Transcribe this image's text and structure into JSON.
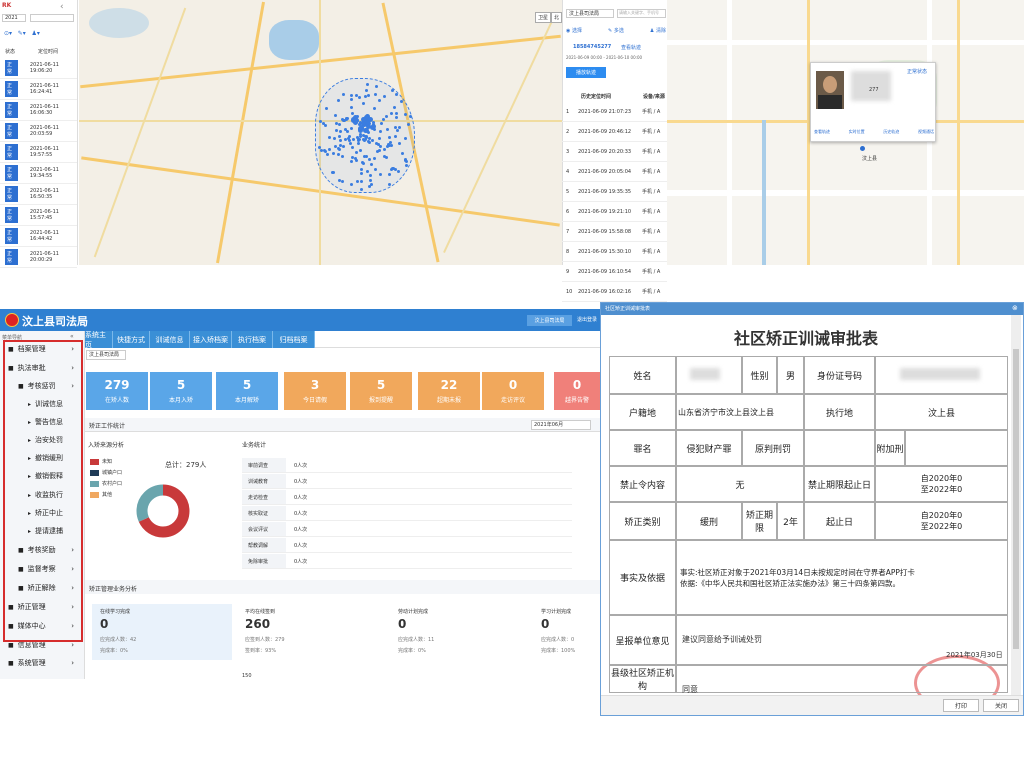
{
  "tl_panel": {
    "logo": "RK",
    "time_badge": "2021",
    "col_status": "状态",
    "col_time": "定位时间",
    "status_badge": "正常",
    "rows": [
      "2021-06-11 19:06:20",
      "2021-06-11 16:24:41",
      "2021-06-11 16:06:30",
      "2021-06-11 20:03:59",
      "2021-06-11 19:57:55",
      "2021-06-11 19:34:55",
      "2021-06-11 16:50:35",
      "2021-06-11 15:57:45",
      "2021-06-11 16:44:42",
      "2021-06-11 20:00:29"
    ]
  },
  "map1": {
    "badge1": "卫星",
    "badge2": "北"
  },
  "mid_panel": {
    "title": "汶上县司法局",
    "search_placeholder": "请输入关键字、手机号",
    "tools": [
      "选择",
      "多选",
      "清除"
    ],
    "phone": "18584745277",
    "link": "查看轨迹",
    "range": "2021-06-09 00:00 - 2021-06-10 00:00",
    "btn": "播放轨迹",
    "hdr_time": "历史定位时间",
    "hdr_dev": "设备/来源",
    "rows": [
      {
        "n": "1",
        "t": "2021-06-09 21:07:23",
        "d": "手机 / A"
      },
      {
        "n": "2",
        "t": "2021-06-09 20:46:12",
        "d": "手机 / A"
      },
      {
        "n": "3",
        "t": "2021-06-09 20:20:33",
        "d": "手机 / A"
      },
      {
        "n": "4",
        "t": "2021-06-09 20:05:04",
        "d": "手机 / A"
      },
      {
        "n": "5",
        "t": "2021-06-09 19:35:35",
        "d": "手机 / A"
      },
      {
        "n": "6",
        "t": "2021-06-09 19:21:10",
        "d": "手机 / A"
      },
      {
        "n": "7",
        "t": "2021-06-09 15:58:08",
        "d": "手机 / A"
      },
      {
        "n": "8",
        "t": "2021-06-09 15:30:10",
        "d": "手机 / A"
      },
      {
        "n": "9",
        "t": "2021-06-09 16:10:54",
        "d": "手机 / A"
      },
      {
        "n": "10",
        "t": "2021-06-09 16:02:16",
        "d": "手机 / A"
      }
    ]
  },
  "map3": {
    "popup_link": "正常状态",
    "actions": [
      "查看轨迹",
      "实时位置",
      "历史轨迹",
      "视频通话"
    ],
    "place": "汶上县",
    "id_suffix": "277"
  },
  "app": {
    "title": "汶上县司法局",
    "user_btn": "汶上县司法局",
    "exit_btn": "退出登录",
    "menu_label": "菜单导航",
    "sidebar": [
      {
        "label": "档案管理",
        "lvl": 0
      },
      {
        "label": "执法审批",
        "lvl": 0
      },
      {
        "label": "考核惩罚",
        "lvl": 1
      },
      {
        "label": "训诫信息",
        "lvl": 2
      },
      {
        "label": "警告信息",
        "lvl": 2
      },
      {
        "label": "治安处罚",
        "lvl": 2
      },
      {
        "label": "撤销缓刑",
        "lvl": 2
      },
      {
        "label": "撤销假释",
        "lvl": 2
      },
      {
        "label": "收监执行",
        "lvl": 2
      },
      {
        "label": "矫正中止",
        "lvl": 2
      },
      {
        "label": "提请逮捕",
        "lvl": 2
      },
      {
        "label": "考核奖励",
        "lvl": 1
      },
      {
        "label": "监督考察",
        "lvl": 1
      },
      {
        "label": "矫正解除",
        "lvl": 1
      },
      {
        "label": "矫正管理",
        "lvl": 0
      },
      {
        "label": "媒体中心",
        "lvl": 0
      },
      {
        "label": "信息管理",
        "lvl": 0
      },
      {
        "label": "系统管理",
        "lvl": 0
      }
    ],
    "tabs": [
      "系统主页",
      "快捷方式",
      "训诫信息",
      "接入矫档案",
      "执行档案",
      "归档档案"
    ],
    "org_select": "汶上县司法局",
    "cards": [
      {
        "n": "279",
        "l": "在矫人数",
        "c": "#5aa6e8"
      },
      {
        "n": "5",
        "l": "本月入矫",
        "c": "#5aa6e8"
      },
      {
        "n": "5",
        "l": "本月解矫",
        "c": "#5aa6e8"
      },
      {
        "n": "3",
        "l": "今日请假",
        "c": "#f1a85c"
      },
      {
        "n": "5",
        "l": "报到提醒",
        "c": "#f1a85c"
      },
      {
        "n": "22",
        "l": "超期未报",
        "c": "#f1a85c"
      },
      {
        "n": "0",
        "l": "走访评议",
        "c": "#f1a85c"
      },
      {
        "n": "0",
        "l": "越界告警",
        "c": "#f0807a"
      }
    ],
    "stats_title": "矫正工作统计",
    "month": "2021年06月",
    "source_title": "入矫来源分析",
    "total": "总计：279人",
    "legend": [
      {
        "l": "未知",
        "c": "#c8393a"
      },
      {
        "l": "城镇户口",
        "c": "#1f3b57"
      },
      {
        "l": "农村户口",
        "c": "#6aa5ad"
      },
      {
        "l": "其他",
        "c": "#f0a860"
      }
    ],
    "biz_title": "业务统计",
    "biz": [
      {
        "k": "审前调查",
        "v": "0人次"
      },
      {
        "k": "训诫教育",
        "v": "0人次"
      },
      {
        "k": "走访检查",
        "v": "0人次"
      },
      {
        "k": "核实取证",
        "v": "0人次"
      },
      {
        "k": "会议评议",
        "v": "0人次"
      },
      {
        "k": "帮教调解",
        "v": "0人次"
      },
      {
        "k": "免除审批",
        "v": "0人次"
      }
    ],
    "online_title": "矫正管理业务分析",
    "online": [
      {
        "t": "在线学习完成",
        "n": "0",
        "a": "应完成人数：42",
        "b": "完成率：0%"
      },
      {
        "t": "平均在线签到",
        "n": "260",
        "a": "应签到人数：279",
        "b": "签到率：93%"
      },
      {
        "t": "劳动计划完成",
        "n": "0",
        "a": "应完成人数：11",
        "b": "完成率：0%"
      },
      {
        "t": "学习计划完成",
        "n": "0",
        "a": "应完成人数：0",
        "b": "完成率：100%"
      }
    ],
    "bottom_num": "150"
  },
  "doc": {
    "window_title": "社区矫正训诫审批表",
    "title": "社区矫正训诫审批表",
    "name_label": "姓名",
    "sex_label": "性别",
    "sex": "男",
    "id_label": "身份证号码",
    "hukou_label": "户籍地",
    "hukou": "山东省济宁市汶上县汶上县",
    "exec_label": "执行地",
    "exec": "汶上县",
    "crime_label": "罪名",
    "crime": "侵犯财产罪",
    "sentence": "原判刑罚",
    "extra_label": "附加刑",
    "ban_label": "禁止令内容",
    "ban": "无",
    "ban_period_label": "禁止期限起止日",
    "ban_period": "自2020年0\n至2022年0",
    "type_label": "矫正类别",
    "type": "缓刑",
    "term_label": "矫正期限",
    "term": "2年",
    "period_label": "起止日",
    "period": "自2020年0\n至2022年0",
    "facts_label": "事实及依据",
    "facts": "事实:社区矫正对象于2021年03月14日未按规定时间在守界者APP打卡\n依据:《中华人民共和国社区矫正法实施办法》第三十四条第四款。",
    "report_label": "呈报单位意见",
    "report": "建议同意给予训诫处罚",
    "report_date": "2021年03月30日",
    "county_label": "县级社区矫正机构",
    "county": "同意",
    "print_btn": "打印",
    "close_btn": "关闭"
  }
}
